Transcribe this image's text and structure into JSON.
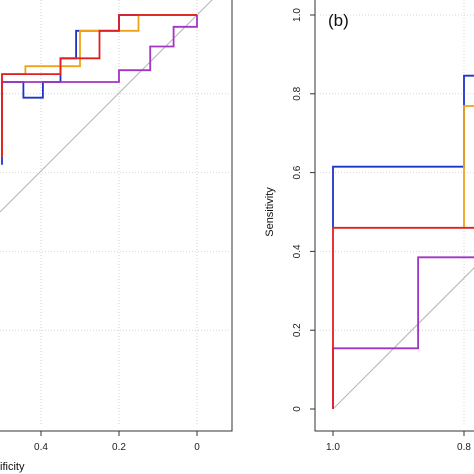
{
  "chart_data": [
    {
      "type": "line",
      "panel": "left",
      "title": "",
      "xlabel": "ificity",
      "ylabel": "",
      "x_reversed": true,
      "xlim": [
        0.5,
        -0.1
      ],
      "ylim": [
        0.0,
        1.0
      ],
      "x_ticks": [
        {
          "value": 0.4,
          "label": "0.4"
        },
        {
          "value": 0.2,
          "label": "0.2"
        },
        {
          "value": 0.0,
          "label": "0"
        }
      ],
      "grid": "on",
      "series": [
        {
          "color": "#1f33c8",
          "points": [
            [
              0.5,
              0.62
            ],
            [
              0.5,
              0.79
            ],
            [
              0.5,
              0.83
            ],
            [
              0.445,
              0.83
            ],
            [
              0.445,
              0.79
            ],
            [
              0.395,
              0.79
            ],
            [
              0.395,
              0.83
            ],
            [
              0.35,
              0.83
            ],
            [
              0.35,
              0.89
            ],
            [
              0.31,
              0.89
            ],
            [
              0.31,
              0.96
            ],
            [
              0.2,
              0.96
            ],
            [
              0.2,
              1.0
            ],
            [
              0.0,
              1.0
            ]
          ]
        },
        {
          "color": "#f0a21a",
          "points": [
            [
              0.5,
              0.64
            ],
            [
              0.5,
              0.79
            ],
            [
              0.5,
              0.85
            ],
            [
              0.44,
              0.85
            ],
            [
              0.44,
              0.87
            ],
            [
              0.3,
              0.87
            ],
            [
              0.3,
              0.96
            ],
            [
              0.15,
              0.96
            ],
            [
              0.15,
              1.0
            ],
            [
              0.0,
              1.0
            ]
          ]
        },
        {
          "color": "#a335c4",
          "points": [
            [
              0.5,
              0.71
            ],
            [
              0.5,
              0.83
            ],
            [
              0.5,
              0.83
            ],
            [
              0.2,
              0.83
            ],
            [
              0.2,
              0.86
            ],
            [
              0.12,
              0.86
            ],
            [
              0.12,
              0.92
            ],
            [
              0.06,
              0.92
            ],
            [
              0.06,
              0.97
            ],
            [
              0.0,
              0.97
            ],
            [
              0.0,
              1.0
            ]
          ]
        },
        {
          "color": "#e02020",
          "points": [
            [
              0.5,
              0.64
            ],
            [
              0.5,
              0.83
            ],
            [
              0.5,
              0.85
            ],
            [
              0.35,
              0.85
            ],
            [
              0.35,
              0.89
            ],
            [
              0.25,
              0.89
            ],
            [
              0.25,
              0.96
            ],
            [
              0.2,
              0.96
            ],
            [
              0.2,
              1.0
            ],
            [
              0.0,
              1.0
            ]
          ]
        }
      ]
    },
    {
      "type": "line",
      "panel": "right",
      "title": "(b)",
      "xlabel": "",
      "ylabel": "Sensitivity",
      "x_reversed": true,
      "xlim": [
        1.0,
        0.0
      ],
      "ylim": [
        0.0,
        1.0
      ],
      "y_ticks": [
        {
          "value": 0.0,
          "label": "0"
        },
        {
          "value": 0.2,
          "label": "0.2"
        },
        {
          "value": 0.4,
          "label": "0.4"
        },
        {
          "value": 0.6,
          "label": "0.6"
        },
        {
          "value": 0.8,
          "label": "0.8"
        },
        {
          "value": 1.0,
          "label": "1.0"
        }
      ],
      "x_ticks": [
        {
          "value": 1.0,
          "label": "1.0"
        },
        {
          "value": 0.8,
          "label": "0.8"
        }
      ],
      "grid": "on",
      "series": [
        {
          "color": "#1f33c8",
          "points": [
            [
              1.0,
              0.46
            ],
            [
              1.0,
              0.615
            ],
            [
              0.8,
              0.615
            ],
            [
              0.8,
              0.846
            ],
            [
              0.58,
              0.846
            ]
          ]
        },
        {
          "color": "#f0a21a",
          "points": [
            [
              0.8,
              0.46
            ],
            [
              0.8,
              0.769
            ],
            [
              0.74,
              0.769
            ],
            [
              0.74,
              0.846
            ],
            [
              0.58,
              0.846
            ]
          ]
        },
        {
          "color": "#a335c4",
          "points": [
            [
              1.0,
              0.0
            ],
            [
              1.0,
              0.154
            ],
            [
              0.87,
              0.154
            ],
            [
              0.87,
              0.385
            ],
            [
              0.58,
              0.385
            ]
          ]
        },
        {
          "color": "#e02020",
          "points": [
            [
              1.0,
              0.0
            ],
            [
              1.0,
              0.46
            ],
            [
              0.74,
              0.46
            ],
            [
              0.74,
              0.846
            ],
            [
              0.58,
              0.846
            ]
          ]
        }
      ]
    }
  ]
}
